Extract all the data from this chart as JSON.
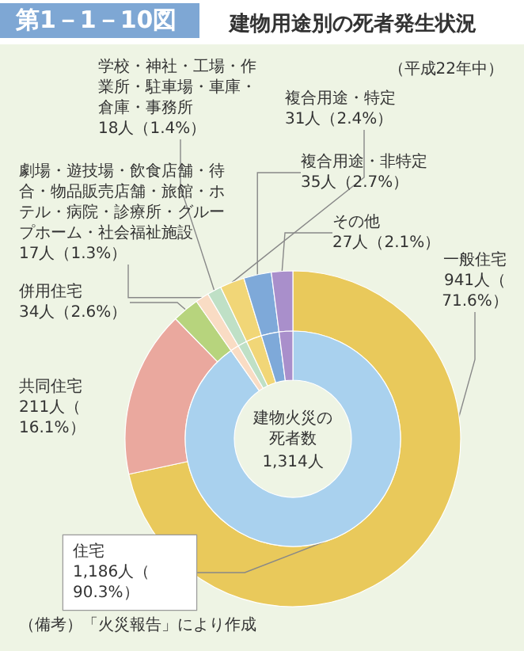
{
  "chart_data": [
    {
      "type": "donut",
      "title": "建物用途別の死者発生状況",
      "subtitle": "（平成22年中）",
      "annotations": [
        "第1－1－10図",
        "建物火災の死者数",
        "1,314人",
        "（備考）「火災報告」により作成"
      ],
      "legend": false,
      "categories": [
        "一般住宅",
        "共同住宅",
        "併用住宅",
        "劇場・遊技場・飲食店舗・待合・物品販売店舗・旅館・ホテル・病院・診療所・グループホーム・社会福祉施設",
        "学校・神社・工場・作業所・駐車場・車庫・倉庫・事務所",
        "複合用途・特定",
        "複合用途・非特定",
        "その他"
      ],
      "values": [
        941,
        211,
        34,
        17,
        18,
        31,
        35,
        27
      ],
      "colors": [
        "#e9c95b",
        "#eaa89e",
        "#b7d47d",
        "#f9dcc4",
        "#bfe0c6",
        "#f1d677",
        "#7ea9d9",
        "#a98fcb"
      ],
      "value_labels": [
        "941人（71.6%）",
        "211人（16.1%）",
        "34人（2.6%）",
        "17人（1.3%）",
        "18人（1.4%）",
        "31人（2.4%）",
        "35人（2.7%）",
        "27人（2.1%）"
      ]
    },
    {
      "type": "donut",
      "categories": [
        "住宅",
        null,
        null,
        null,
        null,
        null
      ],
      "values": [
        1186,
        17,
        18,
        31,
        35,
        27
      ],
      "colors": [
        "#a9d1ee",
        "#f9dcc4",
        "#bfe0c6",
        "#f1d677",
        "#7ea9d9",
        "#a98fcb"
      ],
      "value_labels": [
        "1,186人（90.3%）",
        null,
        null,
        null,
        null,
        null
      ]
    }
  ]
}
